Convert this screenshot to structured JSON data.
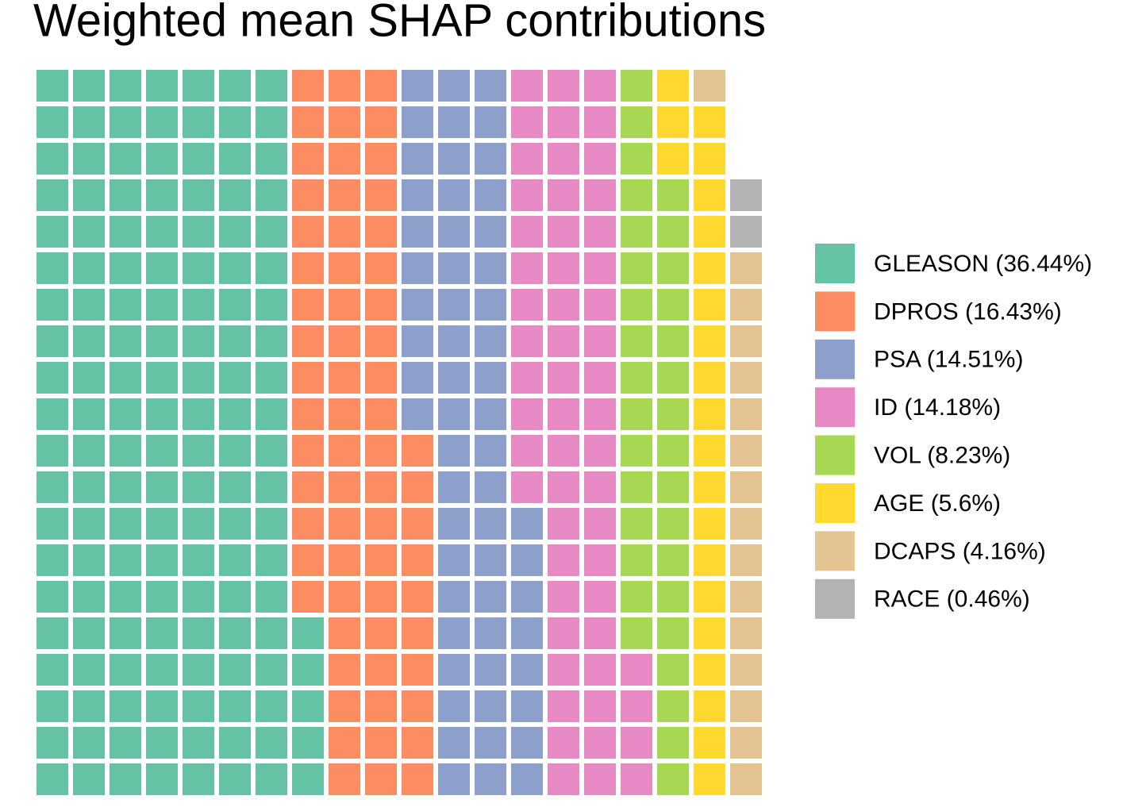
{
  "chart_data": {
    "type": "waffle",
    "title": "Weighted mean SHAP contributions",
    "series": [
      {
        "name": "GLEASON (36.44%)",
        "color": "#66c2a5",
        "value": 145
      },
      {
        "name": "DPROS (16.43%)",
        "color": "#fc8d62",
        "value": 65
      },
      {
        "name": "PSA (14.51%)",
        "color": "#8da0cb",
        "value": 58
      },
      {
        "name": "ID (14.18%)",
        "color": "#e78ac3",
        "value": 56
      },
      {
        "name": "VOL (8.23%)",
        "color": "#a6d854",
        "value": 33
      },
      {
        "name": "AGE (5.6%)",
        "color": "#ffd92f",
        "value": 22
      },
      {
        "name": "DCAPS (4.16%)",
        "color": "#e5c494",
        "value": 16
      },
      {
        "name": "RACE (0.46%)",
        "color": "#b3b3b3",
        "value": 2
      }
    ]
  }
}
